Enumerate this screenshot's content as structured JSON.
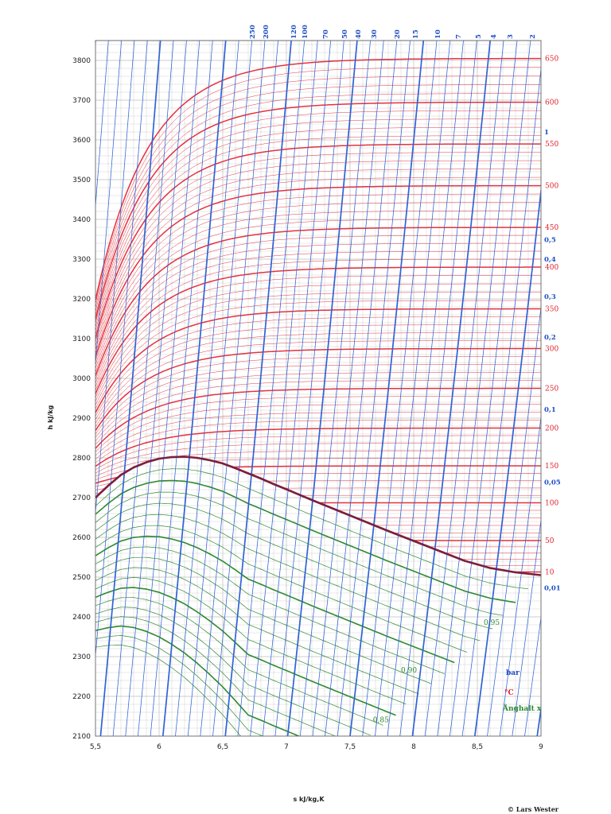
{
  "chart_data": {
    "type": "line",
    "title": "",
    "xlabel": "s  kJ/kg,K",
    "ylabel": "h  kJ/kg",
    "xlim": [
      5.5,
      9
    ],
    "ylim": [
      2100,
      3850
    ],
    "grid": true,
    "x_ticks": [
      "5,5",
      "6",
      "6,5",
      "7",
      "7,5",
      "8",
      "8,5",
      "9"
    ],
    "y_ticks": [
      "2100",
      "2200",
      "2300",
      "2400",
      "2500",
      "2600",
      "2700",
      "2800",
      "2900",
      "3000",
      "3100",
      "3200",
      "3300",
      "3400",
      "3500",
      "3600",
      "3700",
      "3800"
    ],
    "pressure_unit": "bar",
    "temperature_unit": "°C",
    "quality_unit": "Ånghalt x",
    "pressure_labels_top": [
      "250",
      "200",
      "120",
      "100",
      "70",
      "50",
      "40",
      "30",
      "20",
      "15",
      "10",
      "7",
      "5",
      "4",
      "3",
      "2"
    ],
    "pressure_labels_right": [
      {
        "label": "1",
        "h": 3620
      },
      {
        "label": "0,5",
        "h": 3349
      },
      {
        "label": "0,4",
        "h": 3300
      },
      {
        "label": "0,3",
        "h": 3206
      },
      {
        "label": "0,2",
        "h": 3104
      },
      {
        "label": "0,1",
        "h": 2922
      },
      {
        "label": "0,05",
        "h": 2739
      },
      {
        "label": "0,01",
        "h": 2473
      }
    ],
    "temperature_labels": [
      {
        "label": "650",
        "h": 3805
      },
      {
        "label": "600",
        "h": 3695
      },
      {
        "label": "550",
        "h": 3590
      },
      {
        "label": "500",
        "h": 3485
      },
      {
        "label": "450",
        "h": 3380
      },
      {
        "label": "400",
        "h": 3280
      },
      {
        "label": "350",
        "h": 3175
      },
      {
        "label": "300",
        "h": 3075
      },
      {
        "label": "250",
        "h": 2975
      },
      {
        "label": "200",
        "h": 2875
      },
      {
        "label": "150",
        "h": 2780
      },
      {
        "label": "100",
        "h": 2687
      },
      {
        "label": "50",
        "h": 2592
      },
      {
        "label": "10",
        "h": 2513
      }
    ],
    "quality_labels": [
      {
        "label": "0,95",
        "s": 8.55,
        "h": 2380
      },
      {
        "label": "0,90",
        "s": 7.9,
        "h": 2260
      },
      {
        "label": "0,85",
        "s": 7.68,
        "h": 2135
      }
    ],
    "saturation_curve": {
      "s": [
        5.5,
        5.6,
        5.7,
        5.8,
        5.9,
        6.0,
        6.1,
        6.2,
        6.3,
        6.4,
        6.5,
        6.6,
        6.7,
        6.8,
        6.9,
        7.0,
        7.2,
        7.4,
        7.6,
        7.8,
        8.0,
        8.2,
        8.4,
        8.6,
        8.8,
        9.0
      ],
      "h": [
        2700,
        2730,
        2757,
        2776,
        2789,
        2798,
        2802,
        2803,
        2800,
        2794,
        2786,
        2774,
        2761,
        2748,
        2734,
        2721,
        2694,
        2668,
        2642,
        2616,
        2591,
        2566,
        2541,
        2523,
        2512,
        2505
      ]
    }
  },
  "legend": [
    {
      "label": "bar",
      "color": "#1f4fc4"
    },
    {
      "label": "°C",
      "color": "#e0202c"
    },
    {
      "label": "Ånghalt x",
      "color": "#2f8a2f"
    }
  ],
  "credit": "© Lars Wester",
  "colors": {
    "pressure": "#2f63d6",
    "temperature": "#e8303c",
    "quality": "#2f8a2f",
    "saturation": "#7a1f3c",
    "grid": "#bdbdbd"
  }
}
